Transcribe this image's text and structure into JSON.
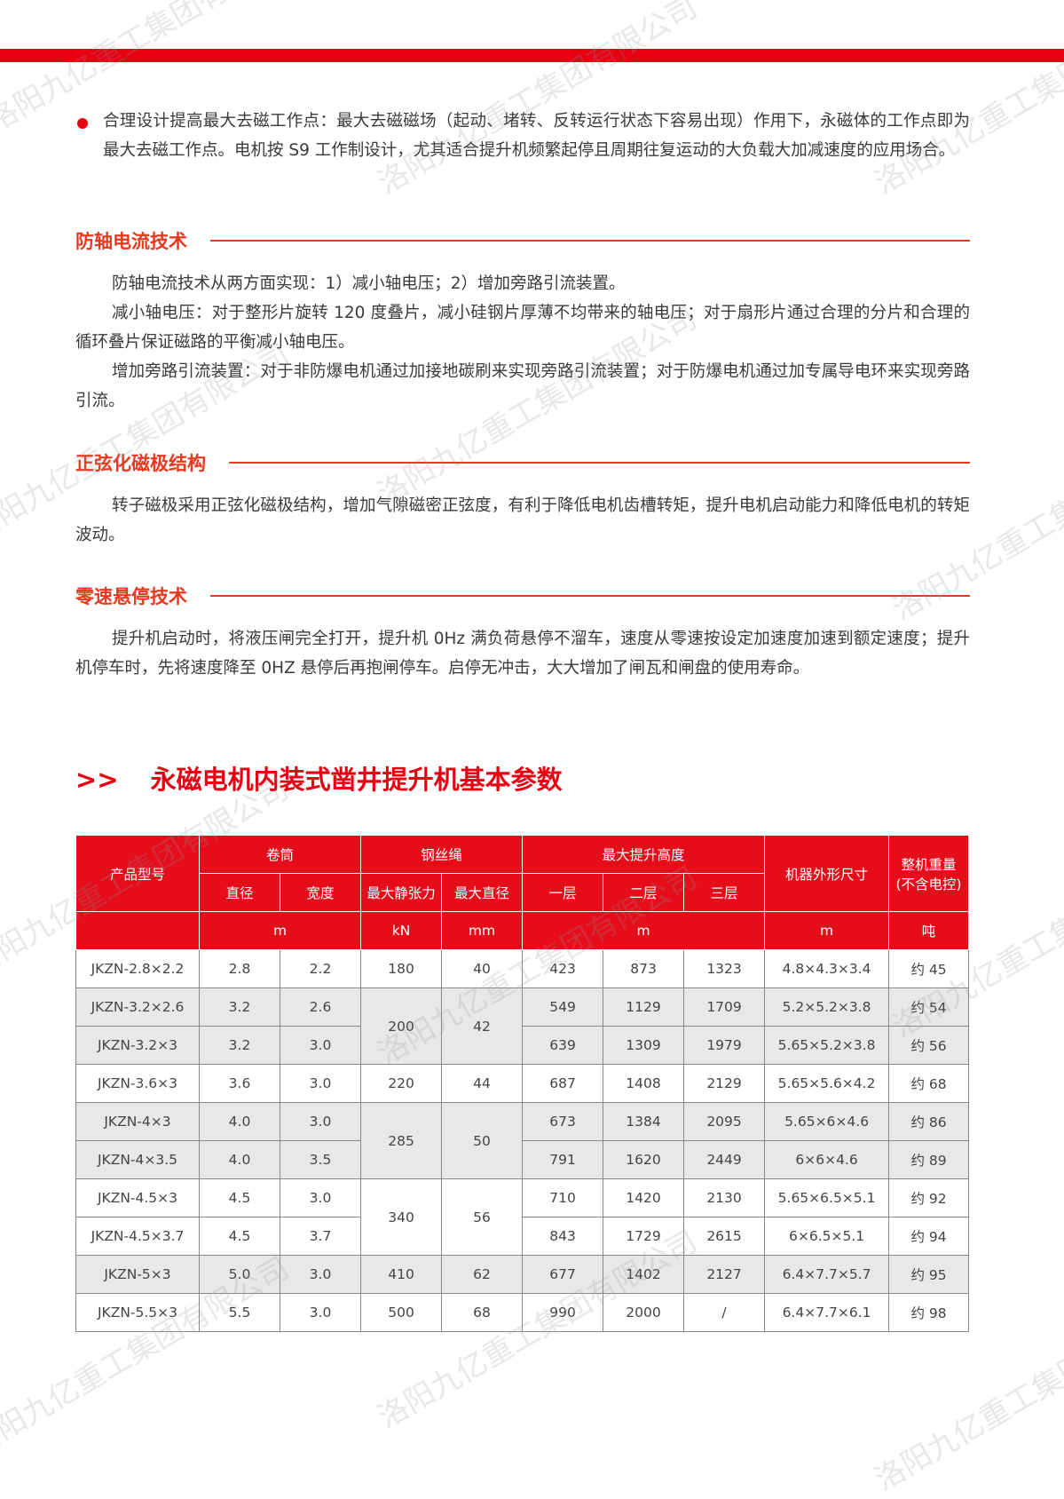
{
  "watermark": "洛阳九亿重工集团有限公司",
  "bullet_text": "合理设计提高最大去磁工作点：最大去磁磁场（起动、堵转、反转运行状态下容易出现）作用下，永磁体的工作点即为最大去磁工作点。电机按 S9 工作制设计，尤其适合提升机频繁起停且周期往复运动的大负载大加减速度的应用场合。",
  "sections": [
    {
      "title": "防轴电流技术",
      "paragraphs": [
        "防轴电流技术从两方面实现：1）减小轴电压；2）增加旁路引流装置。",
        "减小轴电压：对于整形片旋转 120 度叠片，减小硅钢片厚薄不均带来的轴电压；对于扇形片通过合理的分片和合理的循环叠片保证磁路的平衡减小轴电压。",
        "增加旁路引流装置：对于非防爆电机通过加接地碳刷来实现旁路引流装置；对于防爆电机通过加专属导电环来实现旁路引流。"
      ]
    },
    {
      "title": "正弦化磁极结构",
      "paragraphs": [
        "转子磁极采用正弦化磁极结构，增加气隙磁密正弦度，有利于降低电机齿槽转矩，提升电机启动能力和降低电机的转矩波动。"
      ]
    },
    {
      "title": "零速悬停技术",
      "paragraphs": [
        "提升机启动时，将液压闸完全打开，提升机 0Hz 满负荷悬停不溜车，速度从零速按设定加速度加速到额定速度；提升机停车时，先将速度降至 0HZ 悬停后再抱闸停车。启停无冲击，大大增加了闸瓦和闸盘的使用寿命。"
      ]
    }
  ],
  "table_title_prefix": ">>",
  "table_title": "永磁电机内装式凿井提升机基本参数",
  "table": {
    "headers": {
      "model": "产品型号",
      "drum": "卷筒",
      "rope": "钢丝绳",
      "lift": "最大提升高度",
      "size": "机器外形尺寸",
      "weight1": "整机重量",
      "weight2": "(不含电控)",
      "diameter": "直径",
      "width": "宽度",
      "tension": "最大静张力",
      "rope_dia": "最大直径",
      "l1": "一层",
      "l2": "二层",
      "l3": "三层",
      "u_drum": "m",
      "u_tension": "kN",
      "u_rope": "mm",
      "u_lift": "m",
      "u_size": "m",
      "u_weight": "吨"
    },
    "rows": [
      {
        "model": "JKZN-2.8×2.2",
        "d": "2.8",
        "w": "2.2",
        "t": "180",
        "rd": "40",
        "span": 1,
        "l1": "423",
        "l2": "873",
        "l3": "1323",
        "size": "4.8×4.3×3.4",
        "wt": "约 45",
        "shade": false
      },
      {
        "model": "JKZN-3.2×2.6",
        "d": "3.2",
        "w": "2.6",
        "t": "200",
        "rd": "42",
        "span": 2,
        "l1": "549",
        "l2": "1129",
        "l3": "1709",
        "size": "5.2×5.2×3.8",
        "wt": "约 54",
        "shade": true
      },
      {
        "model": "JKZN-3.2×3",
        "d": "3.2",
        "w": "3.0",
        "span": 0,
        "l1": "639",
        "l2": "1309",
        "l3": "1979",
        "size": "5.65×5.2×3.8",
        "wt": "约 56",
        "shade": true
      },
      {
        "model": "JKZN-3.6×3",
        "d": "3.6",
        "w": "3.0",
        "t": "220",
        "rd": "44",
        "span": 1,
        "l1": "687",
        "l2": "1408",
        "l3": "2129",
        "size": "5.65×5.6×4.2",
        "wt": "约 68",
        "shade": false
      },
      {
        "model": "JKZN-4×3",
        "d": "4.0",
        "w": "3.0",
        "t": "285",
        "rd": "50",
        "span": 2,
        "l1": "673",
        "l2": "1384",
        "l3": "2095",
        "size": "5.65×6×4.6",
        "wt": "约 86",
        "shade": true
      },
      {
        "model": "JKZN-4×3.5",
        "d": "4.0",
        "w": "3.5",
        "span": 0,
        "l1": "791",
        "l2": "1620",
        "l3": "2449",
        "size": "6×6×4.6",
        "wt": "约 89",
        "shade": true
      },
      {
        "model": "JKZN-4.5×3",
        "d": "4.5",
        "w": "3.0",
        "t": "340",
        "rd": "56",
        "span": 2,
        "l1": "710",
        "l2": "1420",
        "l3": "2130",
        "size": "5.65×6.5×5.1",
        "wt": "约 92",
        "shade": false
      },
      {
        "model": "JKZN-4.5×3.7",
        "d": "4.5",
        "w": "3.7",
        "span": 0,
        "l1": "843",
        "l2": "1729",
        "l3": "2615",
        "size": "6×6.5×5.1",
        "wt": "约 94",
        "shade": false
      },
      {
        "model": "JKZN-5×3",
        "d": "5.0",
        "w": "3.0",
        "t": "410",
        "rd": "62",
        "span": 1,
        "l1": "677",
        "l2": "1402",
        "l3": "2127",
        "size": "6.4×7.7×5.7",
        "wt": "约 95",
        "shade": true
      },
      {
        "model": "JKZN-5.5×3",
        "d": "5.5",
        "w": "3.0",
        "t": "500",
        "rd": "68",
        "span": 1,
        "l1": "990",
        "l2": "2000",
        "l3": "/",
        "size": "6.4×7.7×6.1",
        "wt": "约 98",
        "shade": false
      }
    ]
  },
  "colors": {
    "accent": "#e60012",
    "heading": "#e8381e",
    "row_shade": "#e8e8e8"
  }
}
